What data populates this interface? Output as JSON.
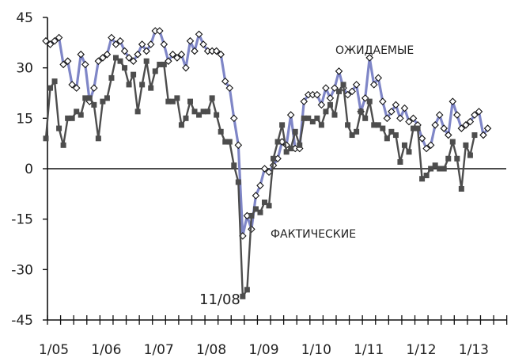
{
  "chart_data": {
    "type": "line",
    "title": "",
    "xlabel": "",
    "ylabel": "",
    "ylim": [
      -45,
      45
    ],
    "yticks": [
      -45,
      -30,
      -15,
      0,
      15,
      30,
      45
    ],
    "x_tick_labels": [
      "1/05",
      "1/06",
      "1/07",
      "1/08",
      "1/09",
      "1/10",
      "1/11",
      "1/12",
      "1/13"
    ],
    "x_start": "2005-01",
    "x_end": "2013-12",
    "grid": false,
    "series": [
      {
        "name": "ОЖИДАЕМЫЕ",
        "color": "#7f86c7",
        "marker": "diamond-open",
        "values": [
          38,
          37,
          38,
          39,
          31,
          32,
          25,
          24,
          34,
          31,
          20,
          24,
          32,
          33,
          34,
          39,
          37,
          38,
          35,
          33,
          32,
          34,
          37,
          35,
          37,
          41,
          41,
          37,
          32,
          34,
          33,
          34,
          30,
          38,
          35,
          40,
          37,
          35,
          35,
          35,
          34,
          26,
          24,
          15,
          7,
          -20,
          -14,
          -18,
          -8,
          -5,
          0,
          -1,
          1,
          3,
          8,
          7,
          16,
          6,
          6,
          20,
          22,
          22,
          22,
          19,
          24,
          21,
          24,
          29,
          24,
          22,
          23,
          25,
          17,
          21,
          33,
          25,
          27,
          20,
          15,
          17,
          19,
          15,
          18,
          14,
          15,
          13,
          9,
          6,
          7,
          13,
          16,
          12,
          10,
          20,
          16,
          12,
          13,
          14,
          16,
          17,
          10,
          12
        ]
      },
      {
        "name": "ФАКТИЧЕСКИЕ",
        "color": "#4d4d4d",
        "marker": "square-filled",
        "values": [
          9,
          24,
          26,
          12,
          7,
          15,
          15,
          17,
          16,
          21,
          21,
          19,
          9,
          20,
          21,
          27,
          33,
          32,
          30,
          25,
          28,
          17,
          25,
          32,
          24,
          29,
          31,
          31,
          20,
          20,
          21,
          13,
          15,
          20,
          17,
          16,
          17,
          17,
          21,
          16,
          11,
          8,
          8,
          1,
          -4,
          -38,
          -36,
          -14,
          -12,
          -13,
          -10,
          -11,
          3,
          8,
          13,
          5,
          6,
          11,
          7,
          15,
          15,
          14,
          15,
          13,
          17,
          19,
          16,
          23,
          25,
          13,
          10,
          11,
          17,
          15,
          20,
          13,
          13,
          12,
          9,
          11,
          10,
          2,
          7,
          5,
          12,
          12,
          -3,
          -2,
          0,
          1,
          0,
          0,
          3,
          8,
          3,
          -6,
          7,
          4,
          10
        ]
      }
    ],
    "annotations": [
      {
        "text": "ОЖИДАЕМЫЕ",
        "series": 0
      },
      {
        "text": "ФАКТИЧЕСКИЕ",
        "series": 1
      },
      {
        "text": "11/08",
        "series": 1
      }
    ]
  }
}
